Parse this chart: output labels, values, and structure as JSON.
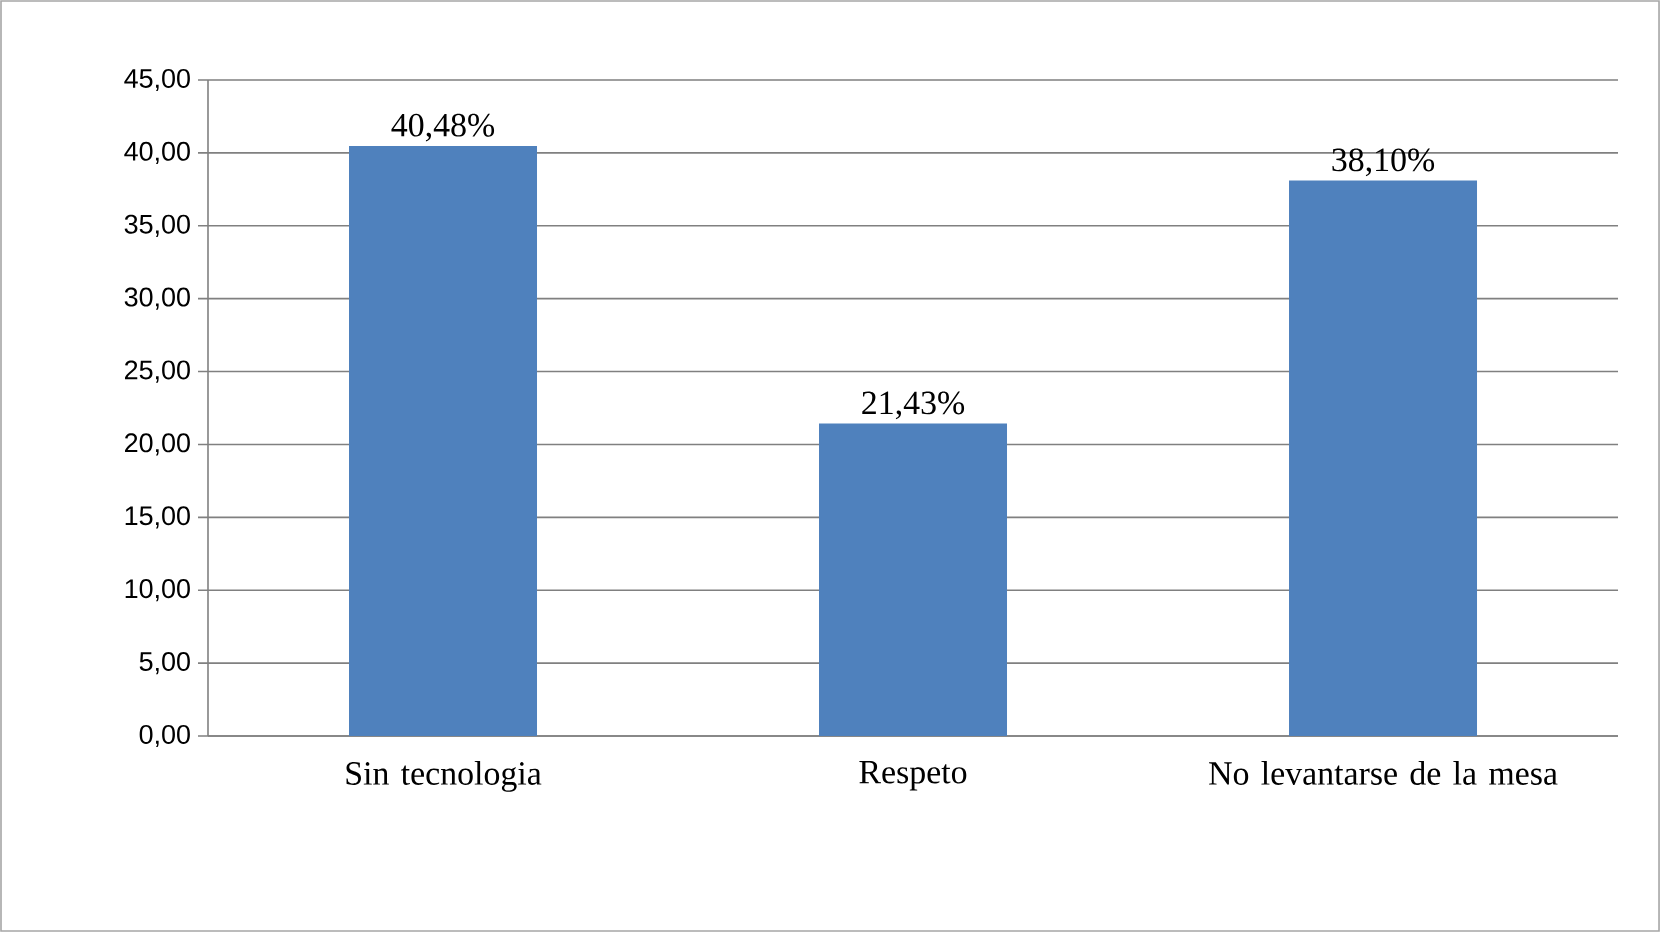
{
  "chart_data": {
    "type": "bar",
    "categories": [
      "Sin tecnologia",
      "Respeto",
      "No levantarse de la mesa"
    ],
    "values": [
      40.48,
      21.43,
      38.1
    ],
    "value_labels": [
      "40,48%",
      "21,43%",
      "38,10%"
    ],
    "color": "#4f81bd",
    "ylim": [
      0,
      45
    ],
    "yticks": [
      {
        "value": 0,
        "label": "0,00"
      },
      {
        "value": 5,
        "label": "5,00"
      },
      {
        "value": 10,
        "label": "10,00"
      },
      {
        "value": 15,
        "label": "15,00"
      },
      {
        "value": 20,
        "label": "20,00"
      },
      {
        "value": 25,
        "label": "25,00"
      },
      {
        "value": 30,
        "label": "30,00"
      },
      {
        "value": 35,
        "label": "35,00"
      },
      {
        "value": 40,
        "label": "40,00"
      },
      {
        "value": 45,
        "label": "45,00"
      }
    ],
    "grid": "y"
  }
}
